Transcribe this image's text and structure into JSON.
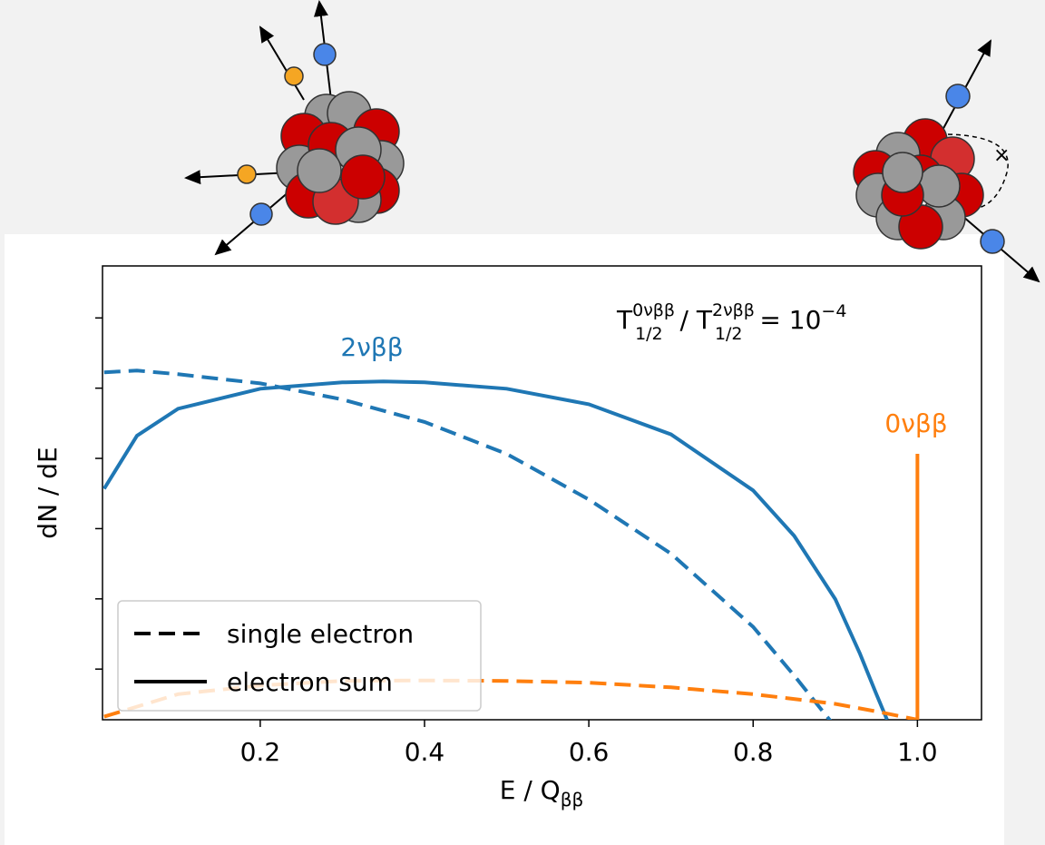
{
  "chart_data": {
    "type": "line",
    "log_y": true,
    "xlabel": "E / Q",
    "xlabel_sub": "ββ",
    "ylabel": "dN / dE",
    "xlim": [
      0.008,
      1.078
    ],
    "ylim": [
      1.9e-06,
      5.5
    ],
    "xticks": [
      0.2,
      0.4,
      0.6,
      0.8,
      {
        "value": 1.0,
        "label": "1.0"
      }
    ],
    "yticks": [
      1e-05,
      0.0001,
      0.001,
      0.01,
      0.1,
      1
    ],
    "annotation": {
      "t1": "T",
      "sup1": "0νββ",
      "sub1": "1/2",
      "mid": " / T",
      "sup2": "2νββ",
      "sub2": "1/2",
      "eq": " = 10",
      "exp": "−4"
    },
    "curve_labels": [
      {
        "text": "2νββ",
        "color": "#1f77b4"
      },
      {
        "text": "0νββ",
        "color": "#ff7f0e"
      }
    ],
    "legend_loc": "lower left",
    "legend": [
      {
        "label": "single electron",
        "dashed": true
      },
      {
        "label": "electron sum",
        "dashed": false
      }
    ],
    "series": [
      {
        "color": "#1f77b4",
        "dashed": false,
        "x": [
          0.01,
          0.05,
          0.1,
          0.2,
          0.3,
          0.35,
          0.4,
          0.5,
          0.6,
          0.7,
          0.8,
          0.85,
          0.9,
          0.93,
          0.95,
          0.963
        ],
        "values": [
          0.0037,
          0.021,
          0.051,
          0.098,
          0.121,
          0.125,
          0.121,
          0.098,
          0.059,
          0.022,
          0.0035,
          0.00079,
          9.9e-05,
          1.66e-05,
          4.4e-06,
          1.9e-06
        ]
      },
      {
        "color": "#1f77b4",
        "dashed": true,
        "x": [
          0.01,
          0.05,
          0.1,
          0.2,
          0.3,
          0.4,
          0.5,
          0.6,
          0.7,
          0.8,
          0.85,
          0.9
        ],
        "values": [
          0.168,
          0.178,
          0.158,
          0.117,
          0.069,
          0.033,
          0.0116,
          0.0026,
          0.00044,
          4e-05,
          8.1e-06,
          1.5e-06
        ]
      },
      {
        "color": "#ff7f0e",
        "dashed": true,
        "x": [
          0.01,
          0.1,
          0.2,
          0.3,
          0.4,
          0.5,
          0.6,
          0.7,
          0.8,
          0.9,
          0.95,
          1.0
        ],
        "values": [
          2.1e-06,
          4.4e-06,
          5.85e-06,
          6.8e-06,
          6.9e-06,
          6.8e-06,
          6.4e-06,
          5.5e-06,
          4.4e-06,
          3.2e-06,
          2.5e-06,
          1.9e-06
        ]
      }
    ],
    "peak": {
      "color": "#ff7f0e",
      "x": 1.0,
      "value": 0.0116
    }
  }
}
